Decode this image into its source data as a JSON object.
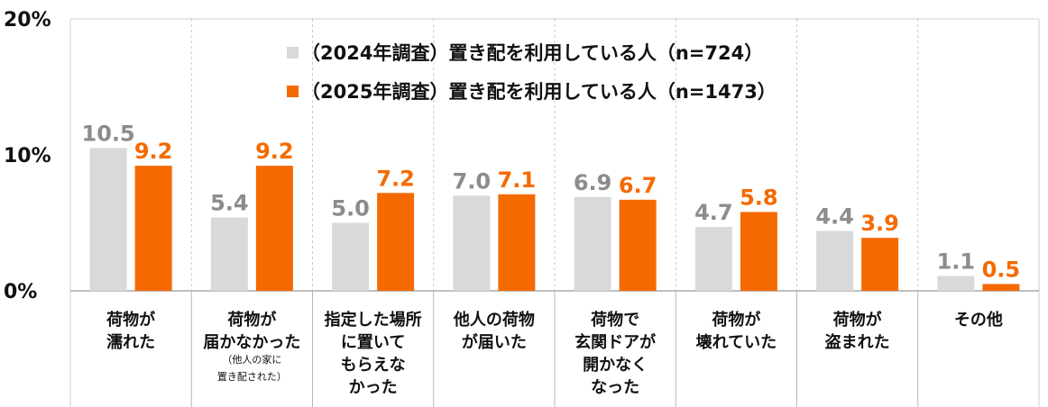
{
  "chart_data": {
    "type": "bar",
    "title": "",
    "xlabel": "",
    "ylabel": "",
    "ylim": [
      0,
      20
    ],
    "yticks": [
      0,
      10,
      20
    ],
    "ytick_labels": [
      "0%",
      "10%",
      "20%"
    ],
    "grid": false,
    "legend_position": "top-center",
    "categories": [
      {
        "lines": [
          "荷物が",
          "濡れた"
        ],
        "sub": []
      },
      {
        "lines": [
          "荷物が",
          "届かなかった"
        ],
        "sub": [
          "（他人の家に",
          "置き配された）"
        ]
      },
      {
        "lines": [
          "指定した場所",
          "に置いて",
          "もらえな",
          "かった"
        ],
        "sub": []
      },
      {
        "lines": [
          "他人の荷物",
          "が届いた"
        ],
        "sub": []
      },
      {
        "lines": [
          "荷物で",
          "玄関ドアが",
          "開かなく",
          "なった"
        ],
        "sub": []
      },
      {
        "lines": [
          "荷物が",
          "壊れていた"
        ],
        "sub": []
      },
      {
        "lines": [
          "荷物が",
          "盗まれた"
        ],
        "sub": []
      },
      {
        "lines": [
          "その他"
        ],
        "sub": []
      }
    ],
    "series": [
      {
        "name": "（2024年調査）置き配を利用している人（n=724）",
        "color": "#d9d9d9",
        "label_color": "#8c8c8c",
        "values": [
          10.5,
          5.4,
          5.0,
          7.0,
          6.9,
          4.7,
          4.4,
          1.1
        ],
        "labels": [
          "10.5",
          "5.4",
          "5.0",
          "7.0",
          "6.9",
          "4.7",
          "4.4",
          "1.1"
        ]
      },
      {
        "name": "（2025年調査）置き配を利用している人（n=1473）",
        "color": "#f56a00",
        "label_color": "#f56a00",
        "values": [
          9.2,
          9.2,
          7.2,
          7.1,
          6.7,
          5.8,
          3.9,
          0.5
        ],
        "labels": [
          "9.2",
          "9.2",
          "7.2",
          "7.1",
          "6.7",
          "5.8",
          "3.9",
          "0.5"
        ]
      }
    ]
  }
}
